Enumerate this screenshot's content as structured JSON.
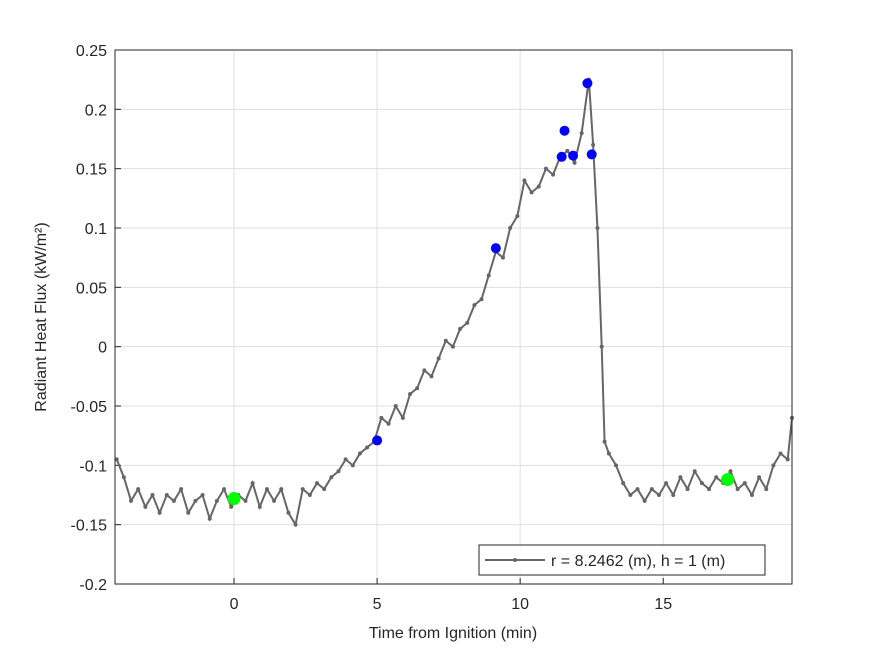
{
  "chart_data": {
    "type": "line",
    "xlabel": "Time from Ignition (min)",
    "ylabel": "Radiant Heat Flux (kW/m²)",
    "xlim": [
      -4.16,
      19.5
    ],
    "xticks": [
      0,
      5,
      10,
      15
    ],
    "ylim": [
      -0.2,
      0.25
    ],
    "yticks": [
      -0.2,
      -0.15,
      -0.1,
      -0.05,
      0,
      0.05,
      0.1,
      0.15,
      0.2,
      0.25
    ],
    "grid": true,
    "legend": "southeast",
    "series": [
      {
        "name": "r = 8.2462 (m), h = 1 (m)",
        "color": "#666666",
        "style": "line",
        "x": [
          -4.1,
          -3.85,
          -3.6,
          -3.35,
          -3.1,
          -2.85,
          -2.6,
          -2.35,
          -2.1,
          -1.85,
          -1.6,
          -1.35,
          -1.1,
          -0.85,
          -0.6,
          -0.35,
          -0.1,
          0.15,
          0.4,
          0.65,
          0.9,
          1.15,
          1.4,
          1.65,
          1.9,
          2.15,
          2.4,
          2.65,
          2.9,
          3.15,
          3.4,
          3.65,
          3.9,
          4.15,
          4.4,
          4.65,
          4.9,
          5.15,
          5.4,
          5.65,
          5.9,
          6.15,
          6.4,
          6.65,
          6.9,
          7.15,
          7.4,
          7.65,
          7.9,
          8.15,
          8.4,
          8.65,
          8.9,
          9.15,
          9.4,
          9.65,
          9.9,
          10.15,
          10.4,
          10.65,
          10.9,
          11.15,
          11.4,
          11.65,
          11.9,
          12.15,
          12.4,
          12.55,
          12.7,
          12.85,
          12.95,
          13.1,
          13.35,
          13.6,
          13.85,
          14.1,
          14.35,
          14.6,
          14.85,
          15.1,
          15.35,
          15.6,
          15.85,
          16.1,
          16.35,
          16.6,
          16.85,
          17.1,
          17.35,
          17.6,
          17.85,
          18.1,
          18.35,
          18.6,
          18.85,
          19.1,
          19.35,
          19.5
        ],
        "values": [
          -0.095,
          -0.11,
          -0.13,
          -0.12,
          -0.135,
          -0.125,
          -0.14,
          -0.125,
          -0.13,
          -0.12,
          -0.14,
          -0.13,
          -0.125,
          -0.145,
          -0.13,
          -0.12,
          -0.135,
          -0.125,
          -0.13,
          -0.115,
          -0.135,
          -0.12,
          -0.13,
          -0.12,
          -0.14,
          -0.15,
          -0.12,
          -0.125,
          -0.115,
          -0.12,
          -0.11,
          -0.105,
          -0.095,
          -0.1,
          -0.09,
          -0.085,
          -0.08,
          -0.06,
          -0.065,
          -0.05,
          -0.06,
          -0.04,
          -0.035,
          -0.02,
          -0.025,
          -0.01,
          0.005,
          0,
          0.015,
          0.02,
          0.035,
          0.04,
          0.06,
          0.08,
          0.075,
          0.1,
          0.11,
          0.14,
          0.13,
          0.135,
          0.15,
          0.145,
          0.16,
          0.165,
          0.155,
          0.18,
          0.225,
          0.17,
          0.1,
          0,
          -0.08,
          -0.09,
          -0.1,
          -0.115,
          -0.125,
          -0.12,
          -0.13,
          -0.12,
          -0.125,
          -0.115,
          -0.125,
          -0.11,
          -0.12,
          -0.105,
          -0.115,
          -0.12,
          -0.11,
          -0.115,
          -0.105,
          -0.12,
          -0.115,
          -0.125,
          -0.11,
          -0.12,
          -0.1,
          -0.09,
          -0.095,
          -0.06
        ]
      },
      {
        "color": "#0000ff",
        "style": "points",
        "x": [
          5,
          9.15,
          11.45,
          11.55,
          11.85,
          12.35,
          12.5
        ],
        "values": [
          -0.079,
          0.083,
          0.16,
          0.182,
          0.161,
          0.222,
          0.162
        ]
      },
      {
        "color": "#00ff00",
        "style": "points",
        "x": [
          0,
          17.25
        ],
        "values": [
          -0.128,
          -0.112
        ]
      }
    ]
  }
}
